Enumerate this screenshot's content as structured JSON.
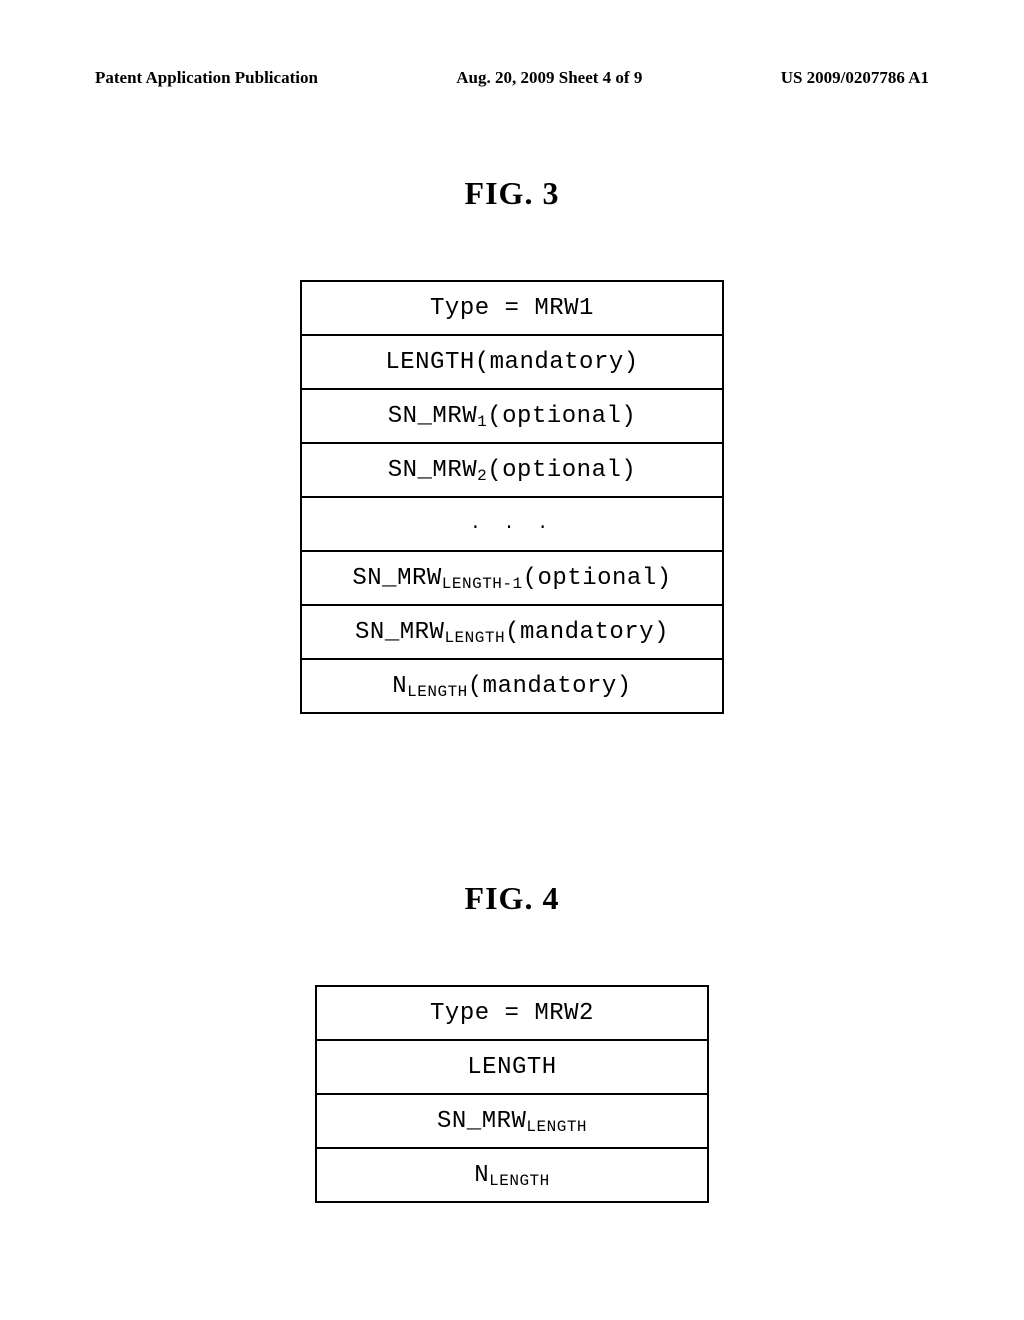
{
  "header": {
    "left": "Patent Application Publication",
    "center": "Aug. 20, 2009  Sheet 4 of 9",
    "right": "US 2009/0207786 A1"
  },
  "fig3": {
    "title": "FIG. 3",
    "rows": {
      "r0_main": "Type = MRW1",
      "r1_main": "LENGTH(mandatory)",
      "r2_prefix": "SN_MRW",
      "r2_sub": "1",
      "r2_suffix": " (optional)",
      "r3_prefix": "SN_MRW",
      "r3_sub": "2",
      "r3_suffix": " (optional)",
      "r4_dots": ". . .",
      "r5_prefix": "SN_MRW",
      "r5_sub": " LENGTH-1",
      "r5_suffix": " (optional)",
      "r6_prefix": "SN_MRW",
      "r6_sub": "LENGTH",
      "r6_suffix": " (mandatory)",
      "r7_prefix": "N",
      "r7_sub": " LENGTH",
      "r7_suffix": " (mandatory)"
    }
  },
  "fig4": {
    "title": "FIG. 4",
    "rows": {
      "r0_main": "Type = MRW2",
      "r1_main": "LENGTH",
      "r2_prefix": "SN_MRW",
      "r2_sub": "LENGTH",
      "r3_prefix": "N",
      "r3_sub": " LENGTH"
    }
  }
}
